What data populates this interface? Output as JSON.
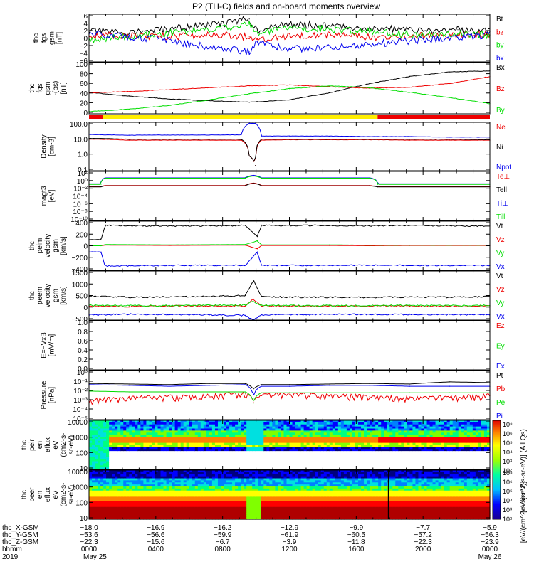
{
  "title": "P2 (TH-C) fields and on-board moments overview",
  "colors": {
    "black": "#000000",
    "red": "#ee0000",
    "green": "#00dd00",
    "blue": "#0000ee",
    "yellow": "#ffee00"
  },
  "chart_data": [
    {
      "type": "line",
      "ylabel": [
        "thc",
        "fgs",
        "gsm",
        "[nT]"
      ],
      "yticks": [
        "6",
        "4",
        "2",
        "0",
        "−2",
        "−4",
        "−6"
      ],
      "ylim": [
        -6,
        6
      ],
      "series": [
        {
          "name": "Bt",
          "color": "black",
          "x": [
            0,
            0.08,
            0.17,
            0.25,
            0.33,
            0.4,
            0.42,
            0.5,
            0.58,
            0.67,
            0.75,
            0.83,
            0.92,
            1
          ],
          "y": [
            1.8,
            1.4,
            1.9,
            2.8,
            3.6,
            4.8,
            2,
            3.5,
            3.2,
            2.6,
            2.4,
            1.8,
            2.1,
            1.6
          ]
        },
        {
          "name": "bz",
          "color": "red",
          "x": [
            0,
            0.08,
            0.17,
            0.25,
            0.33,
            0.4,
            0.42,
            0.5,
            0.58,
            0.67,
            0.75,
            0.83,
            0.92,
            1
          ],
          "y": [
            0.5,
            0.7,
            0.4,
            0.5,
            0.9,
            0.3,
            -0.2,
            0.5,
            1,
            0.4,
            0.1,
            0.6,
            0.8,
            0.9
          ]
        },
        {
          "name": "by",
          "color": "green",
          "x": [
            0,
            0.08,
            0.17,
            0.25,
            0.33,
            0.4,
            0.42,
            0.5,
            0.58,
            0.67,
            0.75,
            0.83,
            0.92,
            1
          ],
          "y": [
            -0.5,
            0.2,
            0.9,
            1.8,
            2.4,
            3.5,
            1.2,
            2.5,
            2.3,
            1.7,
            1.3,
            0.8,
            1.1,
            0.7
          ]
        },
        {
          "name": "bx",
          "color": "blue",
          "x": [
            0,
            0.08,
            0.17,
            0.25,
            0.33,
            0.4,
            0.42,
            0.5,
            0.58,
            0.67,
            0.75,
            0.83,
            0.92,
            1
          ],
          "y": [
            1,
            0.6,
            -0.3,
            -1.5,
            -2.5,
            -3.5,
            -1,
            -2.8,
            -2.5,
            -1.8,
            -1.2,
            -0.5,
            0.2,
            0.8
          ]
        }
      ]
    },
    {
      "type": "line",
      "ylabel": [
        "thc",
        "fgs",
        "gsm",
        "-(bs)",
        "[nT]"
      ],
      "yticks": [
        "100",
        "80",
        "60",
        "40",
        "20",
        "0"
      ],
      "ylim": [
        -10,
        100
      ],
      "series": [
        {
          "name": "Bx",
          "color": "black",
          "x": [
            0,
            0.1,
            0.2,
            0.3,
            0.4,
            0.5,
            0.6,
            0.7,
            0.8,
            0.9,
            1
          ],
          "y": [
            36,
            28,
            22,
            18,
            15,
            20,
            35,
            55,
            70,
            80,
            82
          ]
        },
        {
          "name": "Bz",
          "color": "red",
          "x": [
            0,
            0.1,
            0.2,
            0.3,
            0.4,
            0.5,
            0.6,
            0.7,
            0.8,
            0.9,
            1
          ],
          "y": [
            35,
            38,
            42,
            46,
            50,
            52,
            48,
            45,
            47,
            55,
            70
          ]
        },
        {
          "name": "By",
          "color": "green",
          "x": [
            0,
            0.1,
            0.2,
            0.3,
            0.4,
            0.5,
            0.6,
            0.7,
            0.8,
            0.9,
            1
          ],
          "y": [
            -5,
            0,
            8,
            20,
            33,
            44,
            50,
            46,
            36,
            25,
            12
          ]
        }
      ]
    },
    {
      "type": "line",
      "ylabel": [
        "Density",
        "[cm-3]"
      ],
      "yticks": [
        "100.0",
        "10.0",
        "1.0",
        "0.1"
      ],
      "scale": "log",
      "ylim": [
        0.03,
        300
      ],
      "series": [
        {
          "name": "Ne",
          "color": "red",
          "x": [
            0,
            0.03,
            0.1,
            0.2,
            0.3,
            0.38,
            0.4,
            0.415,
            0.43,
            0.5,
            0.6,
            0.7,
            0.8,
            0.9,
            1
          ],
          "y": [
            12,
            12,
            10,
            10,
            10,
            10,
            0.5,
            0.08,
            10,
            11,
            11,
            11,
            10,
            10,
            10
          ]
        },
        {
          "name": "Ni",
          "color": "black",
          "x": [
            0,
            0.03,
            0.1,
            0.2,
            0.3,
            0.38,
            0.4,
            0.415,
            0.43,
            0.5,
            0.6,
            0.7,
            0.8,
            0.9,
            1
          ],
          "y": [
            14,
            14,
            12,
            12,
            12,
            12,
            0.5,
            0.08,
            12,
            12,
            12,
            12,
            12,
            12,
            11
          ]
        },
        {
          "name": "Npot",
          "color": "blue",
          "x": [
            0,
            0.03,
            0.1,
            0.2,
            0.3,
            0.38,
            0.4,
            0.415,
            0.43,
            0.5,
            0.6,
            0.7,
            0.8,
            0.9,
            1
          ],
          "y": [
            30,
            28,
            26,
            27,
            27,
            28,
            250,
            250,
            22,
            22,
            22,
            20,
            20,
            18,
            18
          ]
        }
      ]
    },
    {
      "type": "line",
      "ylabel": [
        "magt3",
        "[eV]"
      ],
      "yticks": [
        "10²",
        "10⁰",
        "10⁻²",
        "10⁻⁴",
        "10⁻⁶",
        "10⁻⁸",
        "10⁻¹⁰"
      ],
      "scale": "log",
      "ylim": [
        1e-10,
        10000.0
      ],
      "series": [
        {
          "name": "Te⊥",
          "color": "red",
          "x": [
            0,
            0.03,
            0.04,
            0.39,
            0.41,
            0.43,
            0.7,
            0.72,
            1
          ],
          "y": [
            0.5,
            0.5,
            1,
            1,
            5,
            1,
            1,
            0.5,
            0.5
          ]
        },
        {
          "name": "Tell",
          "color": "black",
          "x": [
            0,
            0.03,
            0.04,
            0.39,
            0.41,
            0.43,
            0.7,
            0.72,
            1
          ],
          "y": [
            0.4,
            0.4,
            0.8,
            0.8,
            4,
            0.8,
            0.8,
            0.4,
            0.4
          ]
        },
        {
          "name": "Ti⊥",
          "color": "blue",
          "x": [
            0,
            0.03,
            0.04,
            0.39,
            0.41,
            0.43,
            0.7,
            0.72,
            1
          ],
          "y": [
            3,
            3,
            150,
            150,
            800,
            150,
            150,
            3,
            3
          ]
        },
        {
          "name": "Till",
          "color": "green",
          "x": [
            0,
            0.03,
            0.04,
            0.39,
            0.41,
            0.43,
            0.7,
            0.72,
            1
          ],
          "y": [
            2,
            2,
            120,
            120,
            500,
            120,
            120,
            2,
            2
          ]
        }
      ]
    },
    {
      "type": "line",
      "ylabel": [
        "thc",
        "peim",
        "velocity",
        "gsm",
        "[km/s]"
      ],
      "yticks": [
        "400",
        "200",
        "0",
        "−200",
        "−400"
      ],
      "ylim": [
        -400,
        400
      ],
      "series": [
        {
          "name": "Vt",
          "color": "black",
          "x": [
            0,
            0.03,
            0.04,
            0.2,
            0.39,
            0.42,
            0.43,
            0.6,
            0.7,
            0.8,
            1
          ],
          "y": [
            100,
            100,
            330,
            320,
            330,
            150,
            330,
            330,
            325,
            330,
            320
          ]
        },
        {
          "name": "Vz",
          "color": "red",
          "x": [
            0,
            0.03,
            0.04,
            0.2,
            0.39,
            0.42,
            0.43,
            0.6,
            0.7,
            0.8,
            1
          ],
          "y": [
            0,
            0,
            10,
            5,
            10,
            -50,
            5,
            5,
            0,
            5,
            5
          ]
        },
        {
          "name": "Vy",
          "color": "green",
          "x": [
            0,
            0.03,
            0.04,
            0.2,
            0.39,
            0.42,
            0.43,
            0.6,
            0.7,
            0.8,
            1
          ],
          "y": [
            0,
            0,
            20,
            15,
            20,
            80,
            15,
            15,
            10,
            10,
            10
          ]
        },
        {
          "name": "Vx",
          "color": "blue",
          "x": [
            0,
            0.03,
            0.04,
            0.2,
            0.39,
            0.42,
            0.43,
            0.6,
            0.7,
            0.8,
            1
          ],
          "y": [
            -100,
            -100,
            -330,
            -320,
            -320,
            -100,
            -320,
            -320,
            -315,
            -320,
            -320
          ]
        }
      ]
    },
    {
      "type": "line",
      "ylabel": [
        "thc",
        "peem",
        "velocity",
        "gsm",
        "[km/s]"
      ],
      "yticks": [
        "1500",
        "1000",
        "500",
        "0",
        "−500"
      ],
      "ylim": [
        -600,
        1500
      ],
      "series": [
        {
          "name": "Vt",
          "color": "black",
          "x": [
            0,
            0.1,
            0.2,
            0.3,
            0.39,
            0.41,
            0.43,
            0.5,
            0.6,
            0.7,
            0.8,
            0.9,
            1
          ],
          "y": [
            420,
            380,
            390,
            410,
            450,
            1100,
            400,
            380,
            380,
            370,
            390,
            380,
            400
          ]
        },
        {
          "name": "Vz",
          "color": "red",
          "x": [
            0,
            0.1,
            0.2,
            0.3,
            0.39,
            0.41,
            0.43,
            0.5,
            0.6,
            0.7,
            0.8,
            0.9,
            1
          ],
          "y": [
            0,
            -20,
            10,
            0,
            0,
            300,
            0,
            -10,
            0,
            10,
            0,
            -10,
            0
          ]
        },
        {
          "name": "Vy",
          "color": "green",
          "x": [
            0,
            0.1,
            0.2,
            0.3,
            0.39,
            0.41,
            0.43,
            0.5,
            0.6,
            0.7,
            0.8,
            0.9,
            1
          ],
          "y": [
            30,
            20,
            20,
            30,
            40,
            200,
            30,
            20,
            20,
            20,
            30,
            20,
            20
          ]
        },
        {
          "name": "Vx",
          "color": "blue",
          "x": [
            0,
            0.1,
            0.2,
            0.3,
            0.39,
            0.41,
            0.43,
            0.5,
            0.6,
            0.7,
            0.8,
            0.9,
            1
          ],
          "y": [
            -380,
            -350,
            -360,
            -380,
            -400,
            -600,
            -380,
            -360,
            -360,
            -350,
            -360,
            -360,
            -370
          ]
        }
      ]
    },
    {
      "type": "line",
      "ylabel": [
        "E=−VxB",
        "[mV/m]"
      ],
      "yticks": [
        "1.0",
        "0.8",
        "0.6",
        "0.4",
        "0.2",
        "0.0"
      ],
      "ylim": [
        0,
        1
      ],
      "series": [
        {
          "name": "Ez",
          "color": "red",
          "x": [],
          "y": []
        },
        {
          "name": "Ey",
          "color": "green",
          "x": [],
          "y": []
        },
        {
          "name": "Ex",
          "color": "blue",
          "x": [],
          "y": []
        }
      ]
    },
    {
      "type": "line",
      "ylabel": [
        "Pressure",
        "[nPa]"
      ],
      "yticks": [
        "10⁰",
        "10⁻¹",
        "10⁻²",
        "10⁻³",
        "10⁻⁴",
        "10⁻⁵"
      ],
      "scale": "log",
      "ylim": [
        5e-06,
        1
      ],
      "series": [
        {
          "name": "Pt",
          "color": "black",
          "x": [
            0,
            0.1,
            0.2,
            0.3,
            0.39,
            0.41,
            0.43,
            0.5,
            0.6,
            0.7,
            0.8,
            0.9,
            1
          ],
          "y": [
            0.04,
            0.035,
            0.03,
            0.04,
            0.04,
            0.01,
            0.03,
            0.03,
            0.035,
            0.04,
            0.035,
            0.06,
            0.05
          ]
        },
        {
          "name": "Pb",
          "color": "red",
          "x": [
            0,
            0.1,
            0.2,
            0.3,
            0.39,
            0.41,
            0.43,
            0.5,
            0.6,
            0.7,
            0.8,
            0.9,
            1
          ],
          "y": [
            0.0006,
            0.001,
            0.0015,
            0.002,
            0.003,
            0.0004,
            0.002,
            0.0025,
            0.002,
            0.0015,
            0.001,
            0.0012,
            0.002
          ]
        },
        {
          "name": "Pe",
          "color": "green",
          "x": [
            0,
            0.1,
            0.2,
            0.3,
            0.39,
            0.41,
            0.43,
            0.5,
            0.6,
            0.7,
            0.8,
            0.9,
            1
          ],
          "y": [
            0.006,
            0.005,
            0.005,
            0.005,
            0.005,
            0.0003,
            0.004,
            0.004,
            0.004,
            0.004,
            0.004,
            0.004,
            0.004
          ]
        },
        {
          "name": "Pi",
          "color": "blue",
          "x": [
            0,
            0.1,
            0.2,
            0.3,
            0.39,
            0.41,
            0.43,
            0.5,
            0.6,
            0.7,
            0.8,
            0.9,
            1
          ],
          "y": [
            0.03,
            0.025,
            0.02,
            0.025,
            0.03,
            0.001,
            0.02,
            0.02,
            0.025,
            0.025,
            0.02,
            0.02,
            0.02
          ]
        }
      ]
    },
    {
      "type": "heatmap",
      "ylabel": [
        "thc",
        "peir",
        "en",
        "eflux",
        "eV",
        "(cm2-s-",
        "sr-eV)"
      ],
      "yticks": [
        "10000",
        "1000",
        "100",
        "10"
      ],
      "scale": "log",
      "ylim": [
        5,
        20000
      ]
    },
    {
      "type": "heatmap",
      "ylabel": [
        "thc",
        "peer",
        "en",
        "eflux",
        "eV",
        "(cm2-s-",
        "sr-eV)"
      ],
      "yticks": [
        "10000",
        "1000",
        "100",
        "10"
      ],
      "scale": "log",
      "ylim": [
        5,
        20000
      ]
    }
  ],
  "mode_bar": [
    {
      "from": 0,
      "to": 0.035,
      "color": "red"
    },
    {
      "from": 0.035,
      "to": 0.72,
      "color": "yellow"
    },
    {
      "from": 0.72,
      "to": 1,
      "color": "red"
    }
  ],
  "colorbar": {
    "ticks": [
      "10⁸",
      "10⁶",
      "10⁵",
      "10⁴",
      "10³",
      "10²"
    ],
    "ticks_lower": [
      "10⁸",
      "10⁶",
      "10⁵",
      "10⁴",
      "10³",
      "10²"
    ],
    "label": "[eV/(cm2-s-sr-eV)] (All Qs)",
    "label_overlap": "[eV/(cm^2-s-sr-eV)]"
  },
  "xaxis": {
    "row_labels": [
      "thc_X-GSM",
      "thc_Y-GSM",
      "thc_Z-GSM",
      "hhmm",
      "2019"
    ],
    "columns": [
      {
        "frac": 0.0,
        "values": [
          "−18.0",
          "−53.6",
          "−22.3",
          "0000",
          "May 25"
        ]
      },
      {
        "frac": 0.1667,
        "values": [
          "−16.9",
          "−56.6",
          "−15.6",
          "0400",
          ""
        ]
      },
      {
        "frac": 0.3333,
        "values": [
          "−16.2",
          "−59.9",
          "−6.7",
          "0800",
          ""
        ]
      },
      {
        "frac": 0.5,
        "values": [
          "−12.9",
          "−61.9",
          "−3.9",
          "1200",
          ""
        ]
      },
      {
        "frac": 0.6667,
        "values": [
          "−9.9",
          "−60.5",
          "−11.8",
          "1600",
          ""
        ]
      },
      {
        "frac": 0.8333,
        "values": [
          "−7.7",
          "−57.2",
          "−22.3",
          "2000",
          ""
        ]
      },
      {
        "frac": 1.0,
        "values": [
          "−5.9",
          "−56.3",
          "−23.9",
          "0000",
          "May 26"
        ]
      }
    ]
  }
}
